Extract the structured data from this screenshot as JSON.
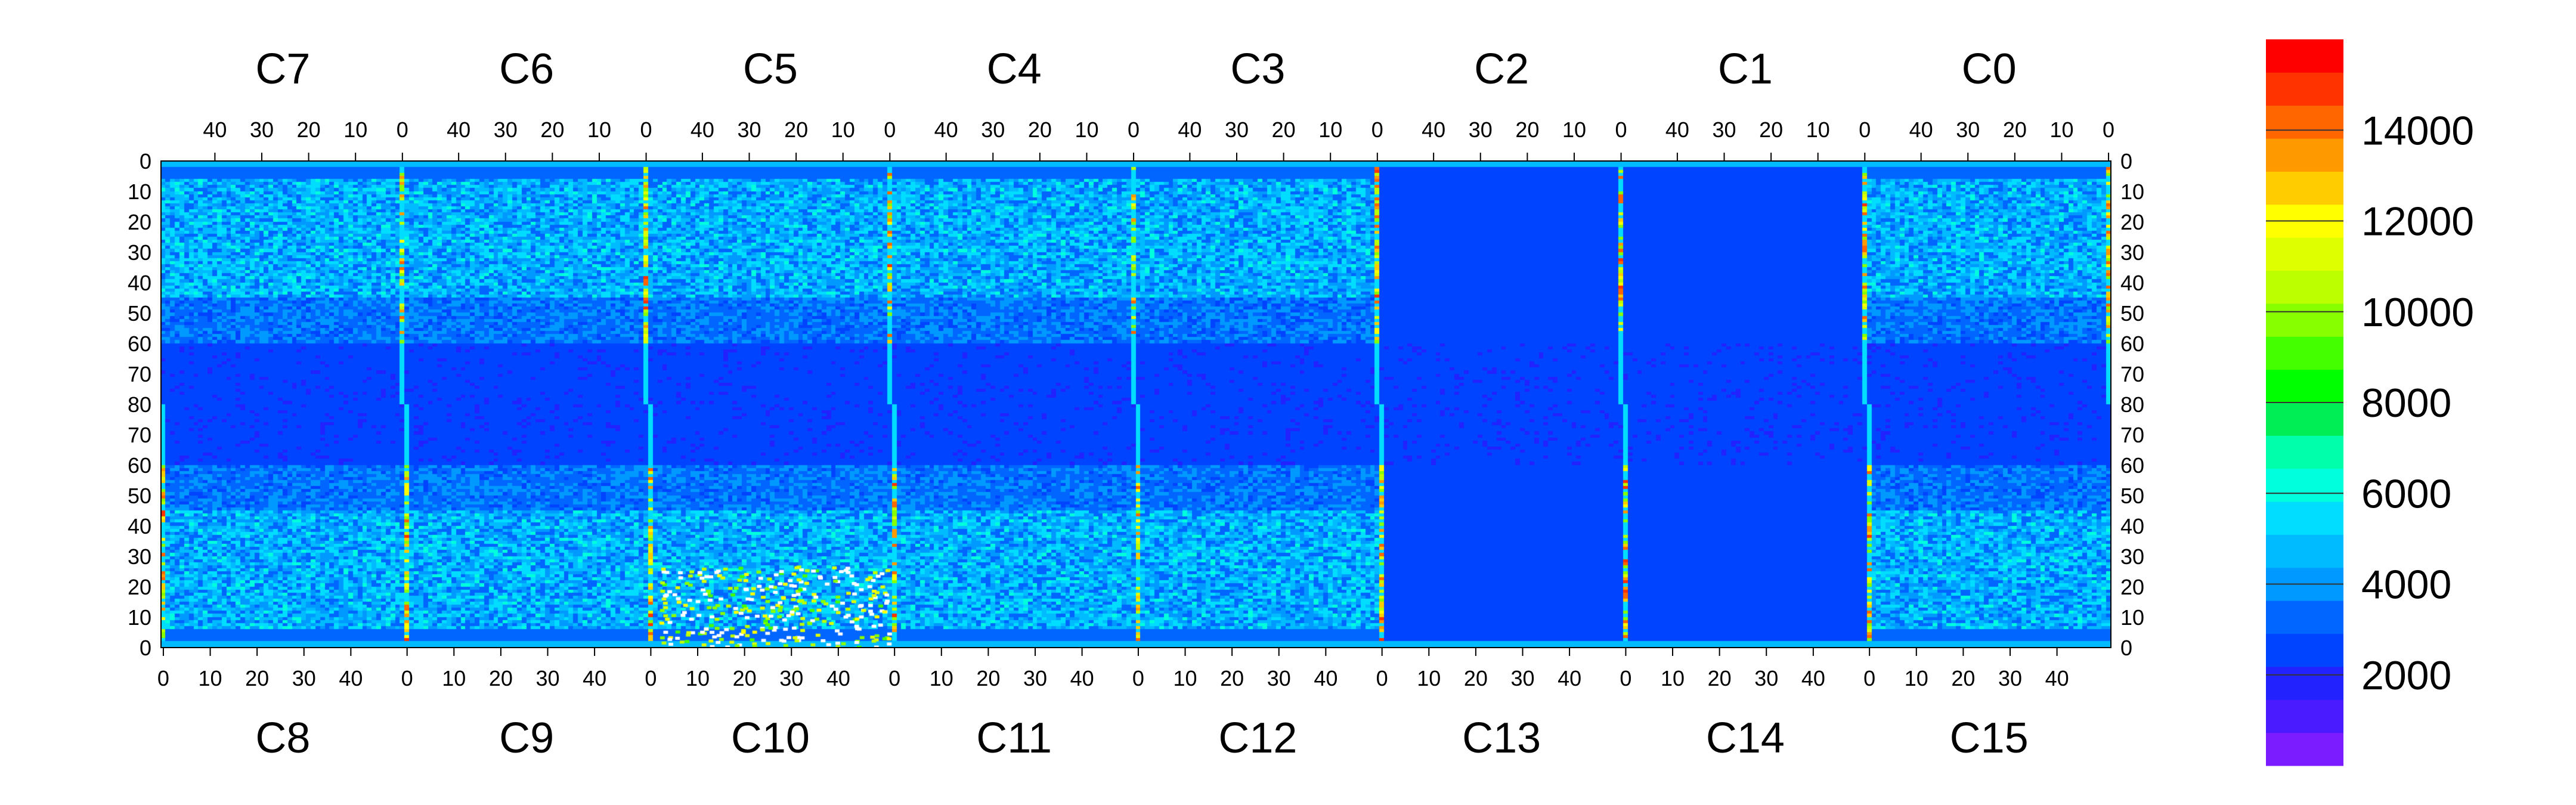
{
  "chart_data": {
    "type": "heatmap",
    "title": "",
    "top_chips": [
      "C7",
      "C6",
      "C5",
      "C4",
      "C3",
      "C2",
      "C1",
      "C0"
    ],
    "bottom_chips": [
      "C8",
      "C9",
      "C10",
      "C11",
      "C12",
      "C13",
      "C14",
      "C15"
    ],
    "top_x_ticks": [
      "40",
      "30",
      "20",
      "10",
      "0"
    ],
    "bottom_x_ticks": [
      "0",
      "10",
      "20",
      "30",
      "40"
    ],
    "top_y_ticks": [
      "0",
      "10",
      "20",
      "30",
      "40",
      "50",
      "60",
      "70",
      "80"
    ],
    "bottom_y_ticks": [
      "70",
      "60",
      "50",
      "40",
      "30",
      "20",
      "10",
      "0"
    ],
    "chip_columns": 52,
    "rows_per_half": 80,
    "colorbar": {
      "min": 0,
      "max": 16000,
      "ticks": [
        "2000",
        "4000",
        "6000",
        "8000",
        "10000",
        "12000",
        "14000"
      ],
      "colors": [
        "#7b1bff",
        "#4b1bff",
        "#2222ff",
        "#0044ff",
        "#0066ff",
        "#0099ff",
        "#00bbff",
        "#00ddff",
        "#00ffdd",
        "#00ffaa",
        "#00ee55",
        "#00ff00",
        "#44ff00",
        "#88ff00",
        "#bbff00",
        "#ddff00",
        "#ffff00",
        "#ffcc00",
        "#ff9900",
        "#ff6600",
        "#ff3300",
        "#ff0000"
      ]
    },
    "typical_value": 3000,
    "bright_column_value": 13500,
    "vertical_lines_value": 5600
  }
}
